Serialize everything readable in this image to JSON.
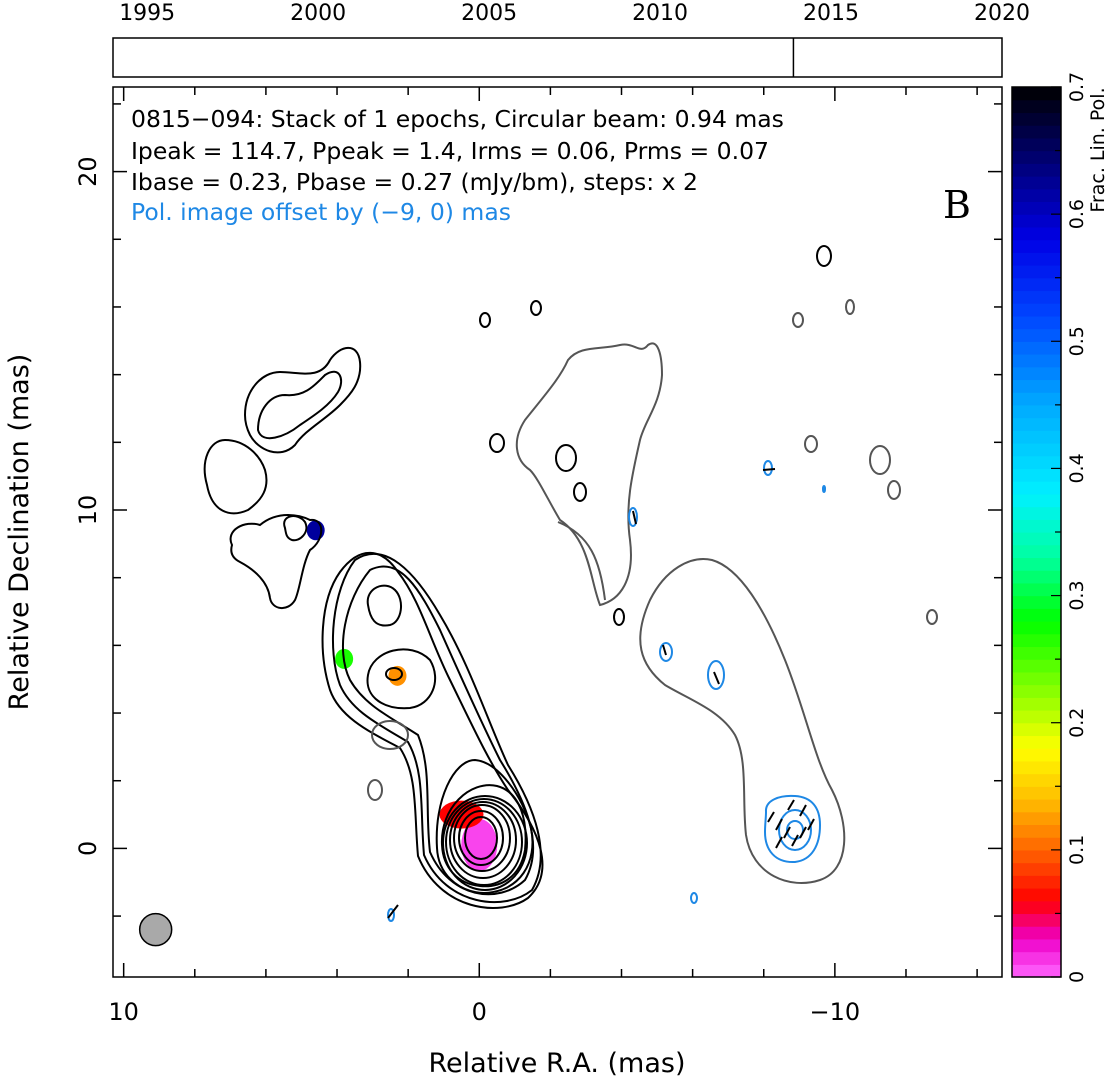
{
  "chart_data": {
    "type": "contour",
    "source": "0815−094",
    "panel_label": "B",
    "annotation_lines": [
      "0815−094: Stack of 1 epochs, Circular beam: 0.94 mas",
      "Ipeak = 114.7, Ppeak = 1.4, Irms = 0.06, Prms = 0.07",
      "Ibase = 0.23, Pbase = 0.27 (mJy/bm), steps: x 2"
    ],
    "annotation_offset_line": "Pol. image offset by (−9, 0) mas",
    "xlabel": "Relative R.A. (mas)",
    "ylabel": "Relative Declination (mas)",
    "xlim": [
      10.3,
      -14.7
    ],
    "ylim": [
      -3.8,
      22.5
    ],
    "x_ticks": [
      10,
      0,
      -10
    ],
    "x_tick_labels": [
      "10",
      "0",
      "−10"
    ],
    "y_ticks": [
      0,
      10,
      20
    ],
    "y_tick_labels": [
      "0",
      "10",
      "20"
    ],
    "timeline": {
      "range": [
        1994.0,
        2020.0
      ],
      "tick_years": [
        1995,
        2000,
        2005,
        2010,
        2015,
        2020
      ],
      "epoch_markers": [
        2013.9
      ]
    },
    "beam": {
      "ra": 9.1,
      "dec": -2.4,
      "diameter_mas": 0.94
    },
    "colorbar": {
      "label": "Frac. Lin. Pol.",
      "range": [
        0,
        0.7
      ],
      "ticks": [
        0,
        0.1,
        0.2,
        0.3,
        0.4,
        0.5,
        0.6,
        0.7
      ],
      "tick_labels": [
        "0",
        "0.1",
        "0.2",
        "0.3",
        "0.4",
        "0.5",
        "0.6",
        "0.7"
      ]
    },
    "colors": {
      "stokes_i_contours": "#000000",
      "polarized_lowest_contour": "#555555",
      "polarized_contours": "#1e88e5",
      "beam_fill": "#a9a9a9",
      "offset_text": "#1e88e5"
    },
    "frac_pol_pixels": [
      {
        "ra": 0.0,
        "dec": 0.1,
        "frac_pol": 0.01
      },
      {
        "ra": 0.5,
        "dec": 1.0,
        "frac_pol": 0.06
      },
      {
        "ra": 2.3,
        "dec": 5.1,
        "frac_pol": 0.12
      },
      {
        "ra": 3.8,
        "dec": 5.6,
        "frac_pol": 0.27
      },
      {
        "ra": 4.6,
        "dec": 9.4,
        "frac_pol": 0.62
      }
    ]
  }
}
